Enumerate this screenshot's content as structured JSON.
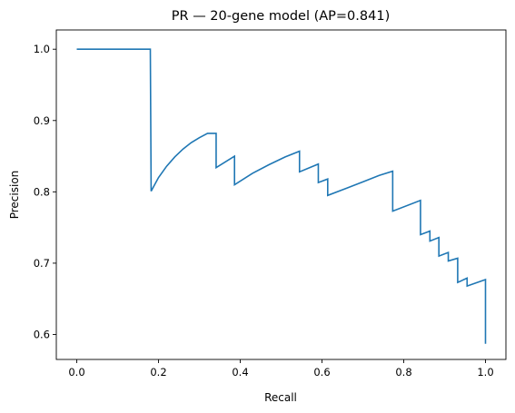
{
  "chart_data": {
    "type": "line",
    "title": "PR — 20-gene model (AP=0.841)",
    "xlabel": "Recall",
    "ylabel": "Precision",
    "xlim": [
      -0.05,
      1.05
    ],
    "ylim": [
      0.565,
      1.027
    ],
    "grid": false,
    "x_ticks": [
      0.0,
      0.2,
      0.4,
      0.6,
      0.8,
      1.0
    ],
    "x_tick_labels": [
      "0.0",
      "0.2",
      "0.4",
      "0.6",
      "0.8",
      "1.0"
    ],
    "y_ticks": [
      0.6,
      0.7,
      0.8,
      0.9,
      1.0
    ],
    "y_tick_labels": [
      "0.6",
      "0.7",
      "0.8",
      "0.9",
      "1.0"
    ],
    "line_color": "#1f77b4",
    "series": [
      {
        "x": [
          0.0,
          0.18,
          0.182,
          0.2,
          0.22,
          0.24,
          0.26,
          0.28,
          0.3,
          0.32,
          0.341,
          0.341,
          0.386,
          0.386,
          0.43,
          0.47,
          0.51,
          0.545,
          0.545,
          0.591,
          0.591,
          0.614,
          0.614,
          0.66,
          0.7,
          0.74,
          0.773,
          0.773,
          0.841,
          0.841,
          0.864,
          0.864,
          0.886,
          0.886,
          0.909,
          0.909,
          0.932,
          0.932,
          0.955,
          0.955,
          1.0,
          1.0
        ],
        "y": [
          1.0,
          1.0,
          0.801,
          0.82,
          0.836,
          0.849,
          0.86,
          0.869,
          0.876,
          0.882,
          0.882,
          0.834,
          0.85,
          0.81,
          0.826,
          0.838,
          0.849,
          0.857,
          0.828,
          0.839,
          0.813,
          0.818,
          0.795,
          0.805,
          0.814,
          0.823,
          0.829,
          0.773,
          0.788,
          0.74,
          0.745,
          0.731,
          0.736,
          0.71,
          0.715,
          0.703,
          0.707,
          0.673,
          0.679,
          0.668,
          0.677,
          0.587
        ]
      }
    ]
  }
}
